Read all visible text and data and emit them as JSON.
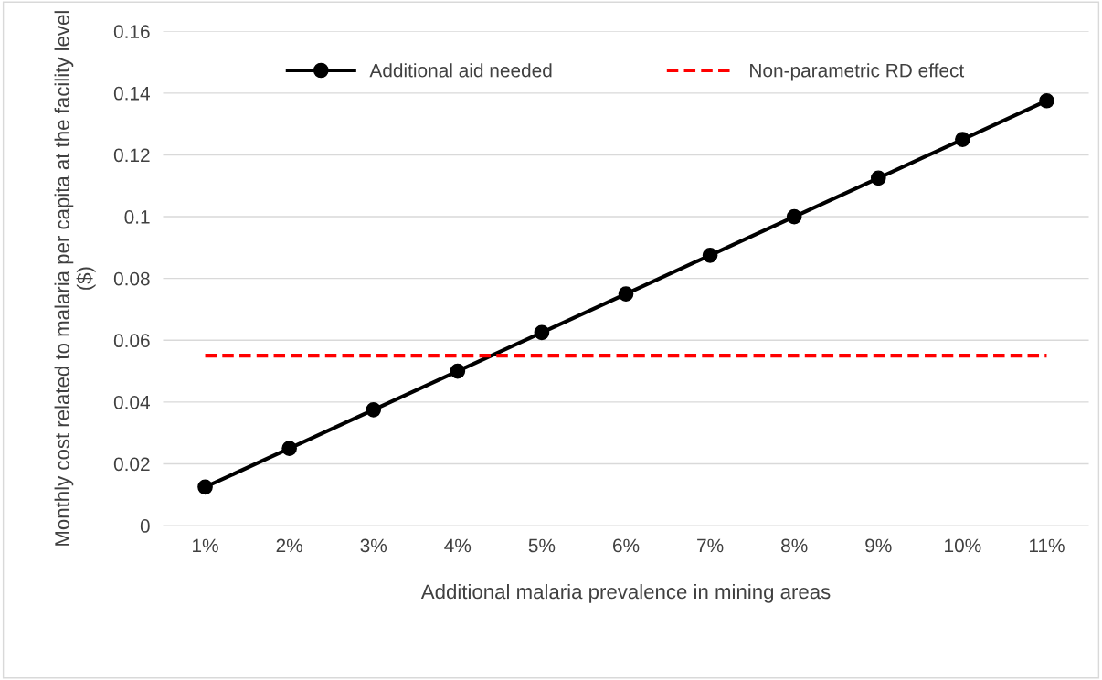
{
  "chart_data": {
    "type": "line",
    "xlabel": "Additional malaria prevalence in mining areas",
    "ylabel": "Monthly cost related to malaria per capita at the facility level ($)",
    "categories": [
      "1%",
      "2%",
      "3%",
      "4%",
      "5%",
      "6%",
      "7%",
      "8%",
      "9%",
      "10%",
      "11%"
    ],
    "series": [
      {
        "name": "Additional aid needed",
        "color": "#000000",
        "marker": "circle",
        "line_style": "solid",
        "values": [
          0.0125,
          0.025,
          0.0375,
          0.05,
          0.0625,
          0.075,
          0.0875,
          0.1,
          0.1125,
          0.125,
          0.1375
        ]
      },
      {
        "name": "Non-parametric RD effect",
        "color": "#ff0000",
        "marker": "none",
        "line_style": "dashed",
        "values": [
          0.055,
          0.055,
          0.055,
          0.055,
          0.055,
          0.055,
          0.055,
          0.055,
          0.055,
          0.055,
          0.055
        ]
      }
    ],
    "ylim": [
      0,
      0.16
    ],
    "yticks": [
      {
        "value": 0,
        "label": "0"
      },
      {
        "value": 0.02,
        "label": "0.02"
      },
      {
        "value": 0.04,
        "label": "0.04"
      },
      {
        "value": 0.06,
        "label": "0.06"
      },
      {
        "value": 0.08,
        "label": "0.08"
      },
      {
        "value": 0.1,
        "label": "0.1"
      },
      {
        "value": 0.12,
        "label": "0.12"
      },
      {
        "value": 0.14,
        "label": "0.14"
      },
      {
        "value": 0.16,
        "label": "0.16"
      }
    ],
    "grid": "y",
    "legend": "top"
  }
}
